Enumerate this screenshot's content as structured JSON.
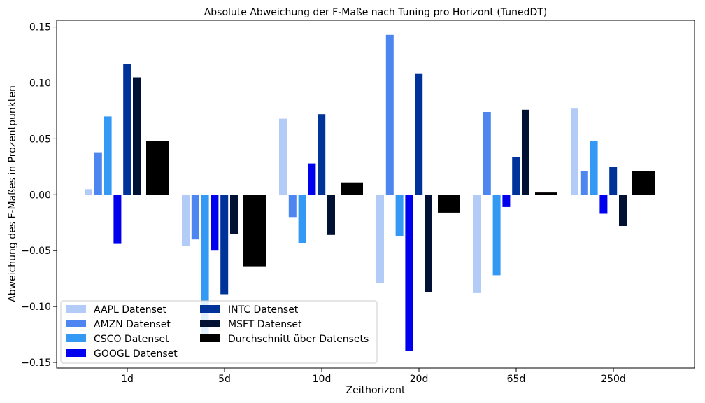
{
  "chart_data": {
    "type": "bar",
    "title": "Absolute Abweichung der F-Maße nach Tuning pro Horizont (TunedDT)",
    "xlabel": "Zeithorizont",
    "ylabel": "Abweichung des F-Maßes in Prozentpunkten",
    "categories": [
      "1d",
      "5d",
      "10d",
      "20d",
      "65d",
      "250d"
    ],
    "ylim": [
      -0.155,
      0.156
    ],
    "yticks": [
      -0.15,
      -0.1,
      -0.05,
      0.0,
      0.05,
      0.1,
      0.15
    ],
    "ytick_labels": [
      "−0.15",
      "−0.10",
      "−0.05",
      "0.00",
      "0.05",
      "0.10",
      "0.15"
    ],
    "grid": false,
    "legend": {
      "placement": "lower-left",
      "columns": 2
    },
    "series": [
      {
        "name": "AAPL Datenset",
        "color": "#b3cbf7",
        "values": [
          0.005,
          -0.046,
          0.068,
          -0.079,
          -0.088,
          0.077
        ]
      },
      {
        "name": "AMZN Datenset",
        "color": "#4d86f0",
        "values": [
          0.038,
          -0.04,
          -0.02,
          0.143,
          0.074,
          0.021
        ]
      },
      {
        "name": "CSCO Datenset",
        "color": "#3399f5",
        "values": [
          0.07,
          -0.125,
          -0.043,
          -0.037,
          -0.072,
          0.048
        ]
      },
      {
        "name": "GOOGL Datenset",
        "color": "#0000ee",
        "values": [
          -0.044,
          -0.05,
          0.028,
          -0.14,
          -0.011,
          -0.017
        ]
      },
      {
        "name": "INTC Datenset",
        "color": "#003399",
        "values": [
          0.117,
          -0.089,
          0.072,
          0.108,
          0.034,
          0.025
        ]
      },
      {
        "name": "MSFT Datenset",
        "color": "#001133",
        "values": [
          0.105,
          -0.035,
          -0.036,
          -0.087,
          0.076,
          -0.028
        ]
      },
      {
        "name": "Durchschnitt über Datensets",
        "color": "#000000",
        "values": [
          0.048,
          -0.064,
          0.011,
          -0.016,
          0.002,
          0.021
        ]
      }
    ]
  }
}
